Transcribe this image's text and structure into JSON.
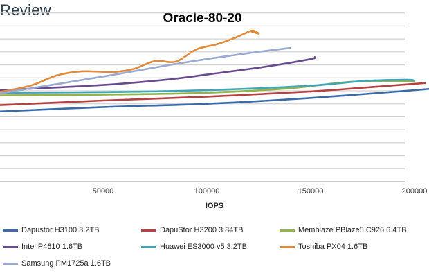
{
  "brand": {
    "text": "Review"
  },
  "chart_data": {
    "type": "line",
    "title": "Oracle-80-20",
    "xlabel": "IOPS",
    "ylabel": "",
    "xlim": [
      0,
      215000
    ],
    "ylim": [
      0,
      14
    ],
    "x_ticks": [
      50000,
      100000,
      150000,
      200000
    ],
    "x_tick_labels": [
      "50000",
      "100000",
      "150000",
      "200000"
    ],
    "y_ticks": [
      0,
      1,
      2,
      3,
      4,
      5,
      6,
      7,
      8,
      9,
      10,
      11,
      12,
      13
    ],
    "grid": "horizontal",
    "legend_position": "bottom",
    "series": [
      {
        "name": "Dapustor H3100 3.2TB",
        "color": "#3a6aa8",
        "points": [
          [
            0,
            5.4
          ],
          [
            50000,
            5.75
          ],
          [
            100000,
            6.0
          ],
          [
            150000,
            6.45
          ],
          [
            200000,
            7.05
          ],
          [
            212000,
            7.25
          ]
        ]
      },
      {
        "name": "DapuStor H3200 3.84TB",
        "color": "#b84040",
        "points": [
          [
            0,
            5.9
          ],
          [
            50000,
            6.25
          ],
          [
            100000,
            6.55
          ],
          [
            150000,
            6.95
          ],
          [
            180000,
            7.3
          ],
          [
            205000,
            7.6
          ]
        ]
      },
      {
        "name": "Memblaze PBlaze5 C926 6.4TB",
        "color": "#93b34a",
        "points": [
          [
            0,
            6.65
          ],
          [
            50000,
            6.7
          ],
          [
            100000,
            6.85
          ],
          [
            140000,
            7.2
          ],
          [
            170000,
            7.7
          ],
          [
            200000,
            7.75
          ]
        ]
      },
      {
        "name": "Intel P4610 1.6TB",
        "color": "#6a4a8f",
        "points": [
          [
            0,
            7.05
          ],
          [
            50000,
            7.45
          ],
          [
            80000,
            7.85
          ],
          [
            100000,
            8.25
          ],
          [
            130000,
            8.9
          ],
          [
            150000,
            9.45
          ],
          [
            152000,
            9.6
          ]
        ]
      },
      {
        "name": "Huawei ES3000 v5 3.2TB",
        "color": "#3fa7b8",
        "points": [
          [
            0,
            6.85
          ],
          [
            50000,
            6.9
          ],
          [
            100000,
            7.05
          ],
          [
            150000,
            7.4
          ],
          [
            175000,
            7.75
          ],
          [
            195000,
            7.85
          ],
          [
            200000,
            7.8
          ]
        ]
      },
      {
        "name": "Toshiba PX04 1.6TB",
        "color": "#e08a3c",
        "points": [
          [
            0,
            6.9
          ],
          [
            15000,
            7.4
          ],
          [
            28000,
            8.2
          ],
          [
            40000,
            8.5
          ],
          [
            55000,
            8.45
          ],
          [
            65000,
            8.7
          ],
          [
            75000,
            9.3
          ],
          [
            85000,
            9.25
          ],
          [
            95000,
            10.2
          ],
          [
            105000,
            10.6
          ],
          [
            113000,
            11.05
          ],
          [
            118000,
            11.4
          ],
          [
            122000,
            11.65
          ],
          [
            125000,
            11.4
          ],
          [
            121000,
            11.6
          ]
        ]
      },
      {
        "name": "Samsung PM1725a 1.6TB",
        "color": "#9aaad2",
        "points": [
          [
            0,
            6.8
          ],
          [
            50000,
            8.1
          ],
          [
            90000,
            9.2
          ],
          [
            120000,
            9.9
          ],
          [
            140000,
            10.3
          ]
        ]
      }
    ]
  }
}
